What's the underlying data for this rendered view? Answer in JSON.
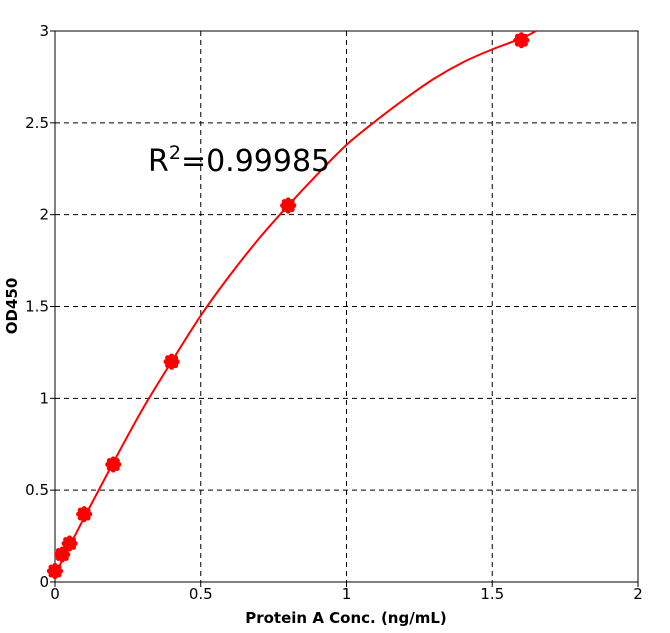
{
  "chart_data": {
    "type": "scatter",
    "title": "",
    "xlabel": "Protein A Conc. (ng/mL)",
    "ylabel": "OD450",
    "xlim": [
      0,
      2
    ],
    "ylim": [
      0,
      3
    ],
    "x_ticks": [
      "0",
      "0.5",
      "1",
      "1.5",
      "2"
    ],
    "y_ticks": [
      "0",
      "0.5",
      "1",
      "1.5",
      "2",
      "2.5",
      "3"
    ],
    "grid": true,
    "legend": "none",
    "annotation": {
      "prefix": "R",
      "sup": "2",
      "suffix": "=0.99985"
    },
    "series": [
      {
        "color": "#ff0000",
        "x": [
          0,
          0.025,
          0.05,
          0.1,
          0.2,
          0.4,
          0.8,
          1.6
        ],
        "y": [
          0.06,
          0.15,
          0.21,
          0.37,
          0.64,
          1.2,
          2.05,
          2.95
        ]
      }
    ],
    "fit_curve": {
      "color": "#ff0000",
      "x": [
        0,
        0.1,
        0.2,
        0.3,
        0.4,
        0.5,
        0.6,
        0.7,
        0.8,
        0.9,
        1.0,
        1.1,
        1.2,
        1.3,
        1.4,
        1.5,
        1.6,
        1.65
      ],
      "y": [
        0.04,
        0.35,
        0.65,
        0.94,
        1.2,
        1.45,
        1.67,
        1.87,
        2.05,
        2.22,
        2.38,
        2.51,
        2.63,
        2.74,
        2.83,
        2.9,
        2.96,
        3.0
      ]
    }
  }
}
